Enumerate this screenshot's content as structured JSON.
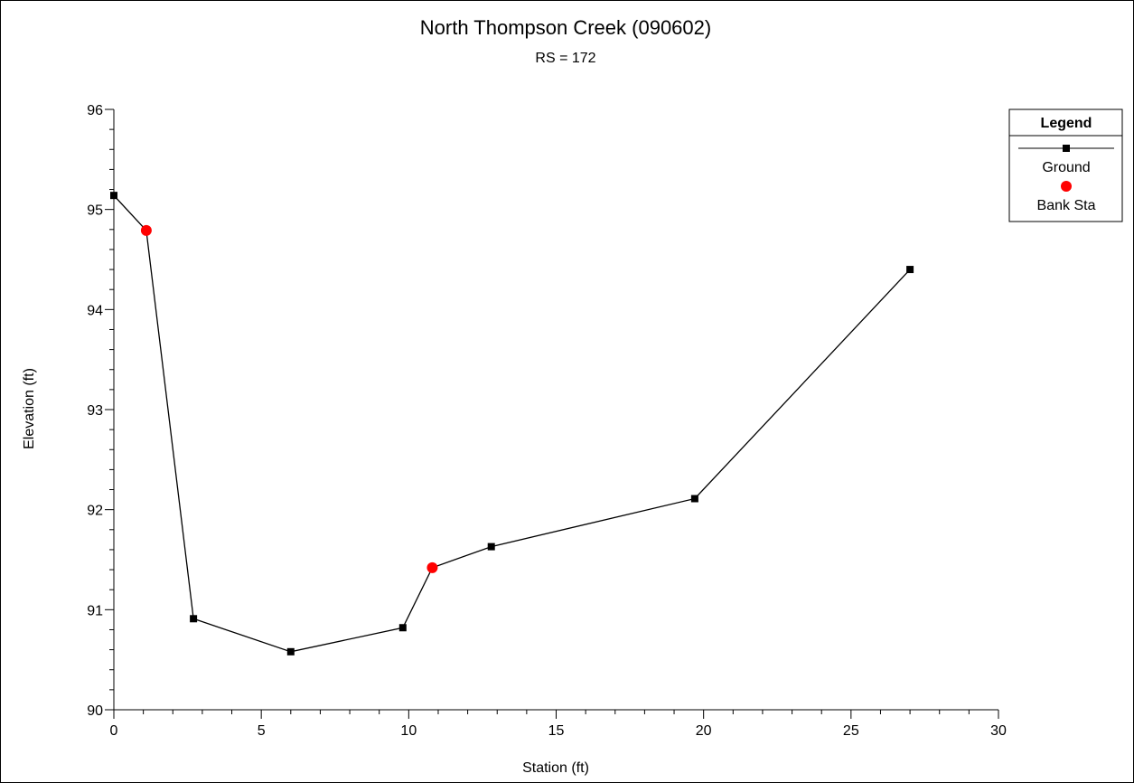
{
  "chart_data": {
    "type": "line",
    "title": "North Thompson Creek (090602)",
    "subtitle": "RS = 172",
    "xlabel": "Station (ft)",
    "ylabel": "Elevation (ft)",
    "xlim": [
      0,
      30
    ],
    "ylim": [
      90,
      96
    ],
    "x_ticks": [
      0,
      5,
      10,
      15,
      20,
      25,
      30
    ],
    "y_ticks": [
      90,
      91,
      92,
      93,
      94,
      95,
      96
    ],
    "grid": false,
    "legend_position": "top-right",
    "legend_title": "Legend",
    "series": [
      {
        "name": "Ground",
        "marker": "square",
        "color": "#000000",
        "x": [
          0,
          1.1,
          2.7,
          6.0,
          9.8,
          10.8,
          12.8,
          19.7,
          27.0
        ],
        "y": [
          95.14,
          94.79,
          90.91,
          90.58,
          90.82,
          91.42,
          91.63,
          92.11,
          94.4
        ],
        "marker_indices": [
          0,
          2,
          3,
          4,
          6,
          7,
          8
        ]
      },
      {
        "name": "Bank Sta",
        "marker": "circle",
        "color": "#ff0000",
        "x": [
          1.1,
          10.8
        ],
        "y": [
          94.79,
          91.42
        ]
      }
    ]
  }
}
